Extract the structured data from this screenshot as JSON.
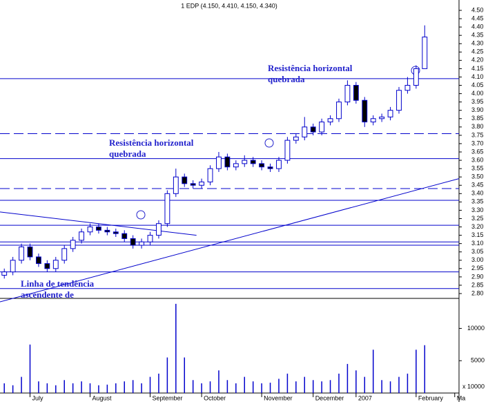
{
  "chart_data": {
    "type": "candlestick",
    "title": "1 EDP (4.150, 4.410, 4.150, 4.340)",
    "color": "#0000cc",
    "open": [
      2.91,
      2.93,
      3.0,
      3.08,
      3.02,
      2.98,
      2.95,
      3.0,
      3.07,
      3.12,
      3.17,
      3.2,
      3.18,
      3.17,
      3.16,
      3.13,
      3.09,
      3.11,
      3.15,
      3.22,
      3.4,
      3.5,
      3.46,
      3.45,
      3.47,
      3.55,
      3.62,
      3.56,
      3.58,
      3.6,
      3.58,
      3.56,
      3.55,
      3.6,
      3.72,
      3.74,
      3.8,
      3.77,
      3.83,
      3.85,
      3.95,
      4.05,
      3.96,
      3.83,
      3.85,
      3.86,
      3.9,
      4.02,
      4.05,
      4.15
    ],
    "high": [
      2.95,
      3.02,
      3.1,
      3.1,
      3.04,
      3.0,
      3.02,
      3.09,
      3.14,
      3.19,
      3.22,
      3.22,
      3.2,
      3.19,
      3.18,
      3.15,
      3.13,
      3.17,
      3.24,
      3.42,
      3.55,
      3.52,
      3.48,
      3.49,
      3.57,
      3.65,
      3.64,
      3.6,
      3.63,
      3.62,
      3.6,
      3.58,
      3.62,
      3.74,
      3.76,
      3.86,
      3.82,
      3.85,
      3.87,
      3.97,
      4.08,
      4.07,
      3.98,
      3.87,
      3.88,
      3.92,
      4.04,
      4.1,
      4.17,
      4.41
    ],
    "low": [
      2.89,
      2.91,
      2.98,
      3.0,
      2.96,
      2.93,
      2.93,
      2.98,
      3.05,
      3.1,
      3.15,
      3.16,
      3.15,
      3.14,
      3.11,
      3.07,
      3.07,
      3.09,
      3.13,
      3.2,
      3.38,
      3.44,
      3.43,
      3.43,
      3.45,
      3.53,
      3.54,
      3.54,
      3.56,
      3.56,
      3.54,
      3.53,
      3.53,
      3.58,
      3.7,
      3.72,
      3.75,
      3.75,
      3.81,
      3.83,
      3.93,
      3.94,
      3.8,
      3.81,
      3.83,
      3.84,
      3.88,
      4.0,
      4.03,
      4.15
    ],
    "close": [
      2.93,
      3.0,
      3.08,
      3.02,
      2.98,
      2.95,
      3.0,
      3.07,
      3.12,
      3.17,
      3.2,
      3.18,
      3.17,
      3.16,
      3.13,
      3.09,
      3.11,
      3.15,
      3.22,
      3.4,
      3.5,
      3.46,
      3.45,
      3.47,
      3.55,
      3.62,
      3.56,
      3.58,
      3.6,
      3.58,
      3.56,
      3.55,
      3.6,
      3.72,
      3.74,
      3.8,
      3.77,
      3.83,
      3.85,
      3.95,
      4.05,
      3.96,
      3.83,
      3.85,
      3.86,
      3.9,
      4.02,
      4.05,
      4.15,
      4.34
    ],
    "volume": [
      1500,
      1200,
      2500,
      7500,
      1800,
      1500,
      1200,
      2000,
      1500,
      1800,
      1500,
      1200,
      1300,
      1500,
      1800,
      2000,
      1500,
      2500,
      3000,
      5500,
      13800,
      5500,
      2000,
      1500,
      1800,
      3500,
      2000,
      1500,
      2500,
      1800,
      1500,
      1600,
      2200,
      3000,
      1800,
      2500,
      2000,
      1800,
      2000,
      3000,
      4500,
      3500,
      2500,
      6700,
      2000,
      1800,
      2500,
      3000,
      6700,
      7400
    ],
    "xlim": [
      -0.5,
      53
    ],
    "xticks": [
      {
        "value": 3,
        "label": "July"
      },
      {
        "value": 10,
        "label": "August"
      },
      {
        "value": 17,
        "label": "September"
      },
      {
        "value": 23,
        "label": "October"
      },
      {
        "value": 30,
        "label": "November"
      },
      {
        "value": 36,
        "label": "December"
      },
      {
        "value": 41,
        "label": "2007"
      },
      {
        "value": 48,
        "label": "February"
      },
      {
        "value": 52.5,
        "label": "Ma"
      }
    ],
    "ylim": [
      2.8,
      4.5
    ],
    "yticks": [
      {
        "value": 2.8,
        "label": "2.80"
      },
      {
        "value": 2.85,
        "label": "2.85"
      },
      {
        "value": 2.9,
        "label": "2.90"
      },
      {
        "value": 2.95,
        "label": "2.95"
      },
      {
        "value": 3.0,
        "label": "3.00"
      },
      {
        "value": 3.05,
        "label": "3.05"
      },
      {
        "value": 3.1,
        "label": "3.10"
      },
      {
        "value": 3.15,
        "label": "3.15"
      },
      {
        "value": 3.2,
        "label": "3.20"
      },
      {
        "value": 3.25,
        "label": "3.25"
      },
      {
        "value": 3.3,
        "label": "3.30"
      },
      {
        "value": 3.35,
        "label": "3.35"
      },
      {
        "value": 3.4,
        "label": "3.40"
      },
      {
        "value": 3.45,
        "label": "3.45"
      },
      {
        "value": 3.5,
        "label": "3.50"
      },
      {
        "value": 3.55,
        "label": "3.55"
      },
      {
        "value": 3.6,
        "label": "3.60"
      },
      {
        "value": 3.65,
        "label": "3.65"
      },
      {
        "value": 3.7,
        "label": "3.70"
      },
      {
        "value": 3.75,
        "label": "3.75"
      },
      {
        "value": 3.8,
        "label": "3.80"
      },
      {
        "value": 3.85,
        "label": "3.85"
      },
      {
        "value": 3.9,
        "label": "3.90"
      },
      {
        "value": 3.95,
        "label": "3.95"
      },
      {
        "value": 4.0,
        "label": "4.00"
      },
      {
        "value": 4.05,
        "label": "4.05"
      },
      {
        "value": 4.1,
        "label": "4.10"
      },
      {
        "value": 4.15,
        "label": "4.15"
      },
      {
        "value": 4.2,
        "label": "4.20"
      },
      {
        "value": 4.25,
        "label": "4.25"
      },
      {
        "value": 4.3,
        "label": "4.30"
      },
      {
        "value": 4.35,
        "label": "4.35"
      },
      {
        "value": 4.4,
        "label": "4.40"
      },
      {
        "value": 4.45,
        "label": "4.45"
      },
      {
        "value": 4.5,
        "label": "4.50"
      }
    ],
    "volume_ylim": [
      0,
      14000
    ],
    "volume_yticks": [
      5000,
      10000
    ],
    "volume_unit_label": "x 10000",
    "levels": [
      {
        "price": 4.09,
        "dashed": false
      },
      {
        "price": 3.76,
        "dashed": true
      },
      {
        "price": 3.61,
        "dashed": false
      },
      {
        "price": 3.43,
        "dashed": true
      },
      {
        "price": 3.36,
        "dashed": false
      },
      {
        "price": 3.21,
        "dashed": false
      },
      {
        "price": 3.11,
        "dashed": false
      },
      {
        "price": 3.09,
        "dashed": false
      },
      {
        "price": 2.93,
        "dashed": false
      },
      {
        "price": 2.83,
        "dashed": false
      }
    ],
    "trendlines": [
      {
        "x": [
          -0.5,
          53
        ],
        "price": [
          2.75,
          3.49
        ]
      },
      {
        "x": [
          -0.5,
          22.4
        ],
        "price": [
          3.29,
          3.15
        ]
      }
    ],
    "annotations": [
      {
        "lines": [
          "Resistência horizontal",
          "quebrada"
        ]
      },
      {
        "lines": [
          "Resistência horizontal",
          "quebrada"
        ]
      },
      {
        "lines": [
          "Linha de tendência",
          "ascendente de"
        ]
      }
    ]
  }
}
